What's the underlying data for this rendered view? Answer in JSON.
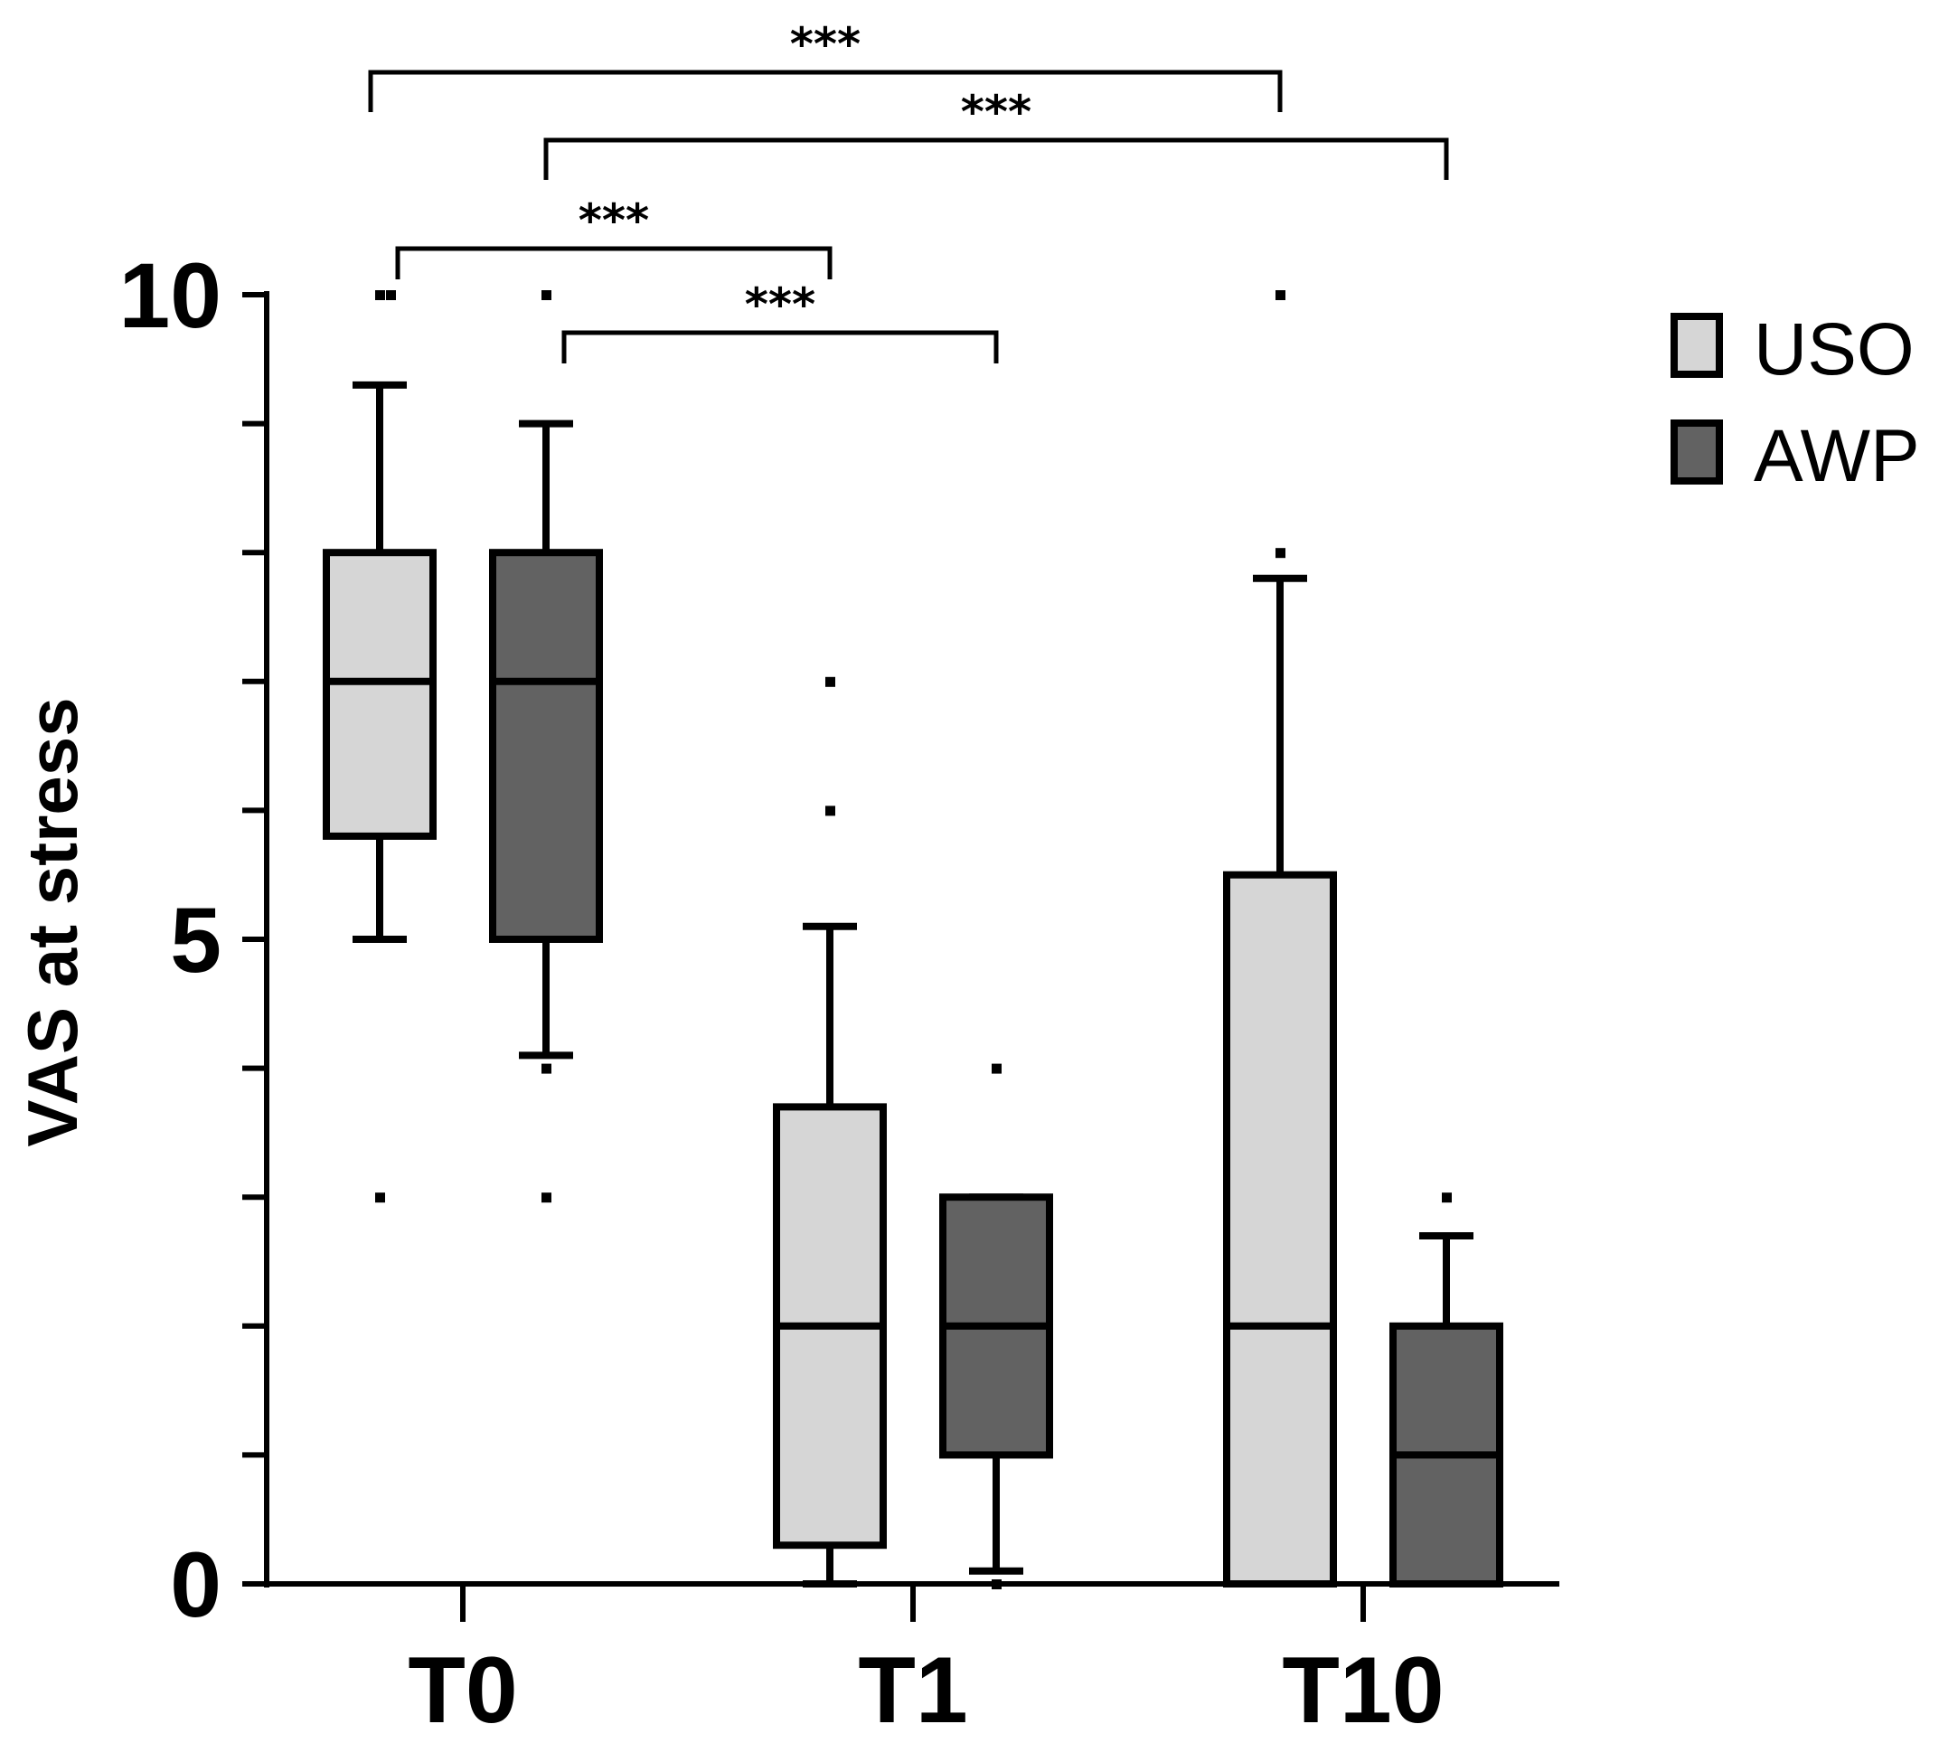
{
  "chart_data": {
    "type": "box",
    "ylabel": "VAS  at stress",
    "xlabel": "",
    "ylim": [
      0,
      10
    ],
    "yticks": [
      0,
      5,
      10
    ],
    "categories": [
      "T0",
      "T1",
      "T10"
    ],
    "legend": {
      "placement": "top-right"
    },
    "series": [
      {
        "name": "USO",
        "color": "#d6d6d6",
        "boxes": [
          {
            "category": "T0",
            "min": 5,
            "q1": 5.8,
            "median": 7,
            "q3": 8.0,
            "max": 9.3,
            "outliers": [
              10,
              10,
              3
            ]
          },
          {
            "category": "T1",
            "min": 0,
            "q1": 0.3,
            "median": 2,
            "q3": 3.7,
            "max": 5.1,
            "outliers": [
              7,
              6
            ]
          },
          {
            "category": "T10",
            "min": 0,
            "q1": 0,
            "median": 2,
            "q3": 5.5,
            "max": 7.8,
            "outliers": [
              10,
              8
            ]
          }
        ]
      },
      {
        "name": "AWP",
        "color": "#626262",
        "boxes": [
          {
            "category": "T0",
            "min": 4.1,
            "q1": 5.0,
            "median": 7,
            "q3": 8.0,
            "max": 9.0,
            "outliers": [
              10,
              4,
              3
            ]
          },
          {
            "category": "T1",
            "min": 0.1,
            "q1": 1.0,
            "median": 2,
            "q3": 3.0,
            "max": 3.0,
            "outliers": [
              4,
              0
            ]
          },
          {
            "category": "T10",
            "min": 0,
            "q1": 0,
            "median": 1,
            "q3": 2.0,
            "max": 2.7,
            "outliers": [
              3
            ]
          }
        ]
      }
    ],
    "annotations": [
      {
        "label": "***",
        "from": "T0 USO",
        "to": "T1 USO"
      },
      {
        "label": "***",
        "from": "T0 AWP",
        "to": "T1 AWP"
      },
      {
        "label": "***",
        "from": "T0 USO",
        "to": "T10 USO"
      },
      {
        "label": "***",
        "from": "T0 AWP",
        "to": "T10 AWP"
      }
    ]
  }
}
